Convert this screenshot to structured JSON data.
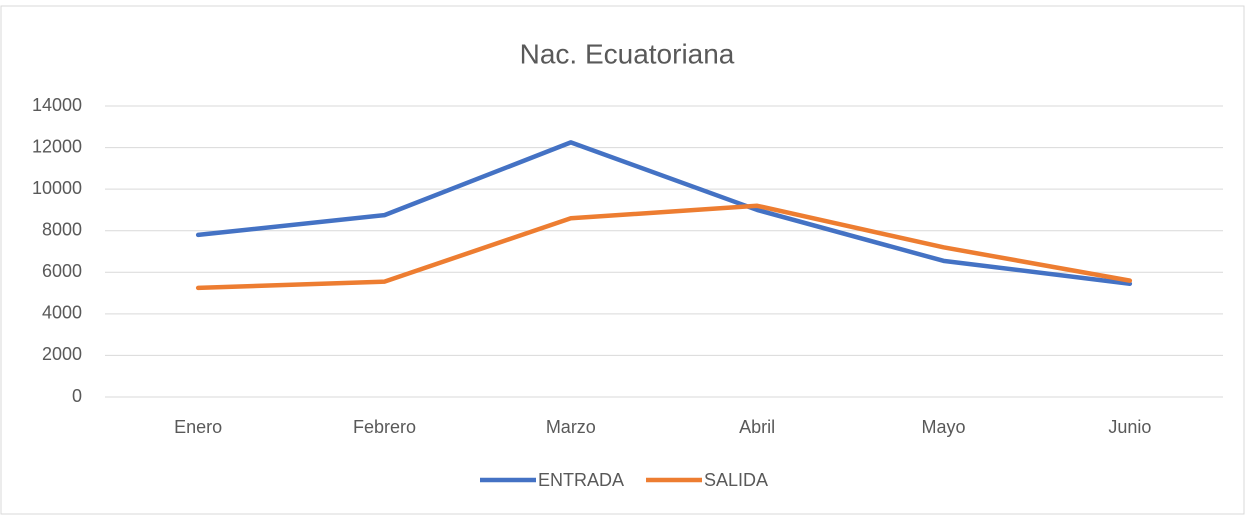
{
  "chart_data": {
    "type": "line",
    "title": "Nac. Ecuatoriana",
    "categories": [
      "Enero",
      "Febrero",
      "Marzo",
      "Abril",
      "Mayo",
      "Junio"
    ],
    "series": [
      {
        "name": "ENTRADA",
        "color": "#4472c4",
        "values": [
          7800,
          8750,
          12250,
          9000,
          6550,
          5450
        ]
      },
      {
        "name": "SALIDA",
        "color": "#ed7d31",
        "values": [
          5250,
          5550,
          8600,
          9200,
          7200,
          5600
        ]
      }
    ],
    "ylim": [
      0,
      14000
    ],
    "yticks": [
      0,
      2000,
      4000,
      6000,
      8000,
      10000,
      12000,
      14000
    ],
    "grid": true,
    "legend": "bottom"
  }
}
